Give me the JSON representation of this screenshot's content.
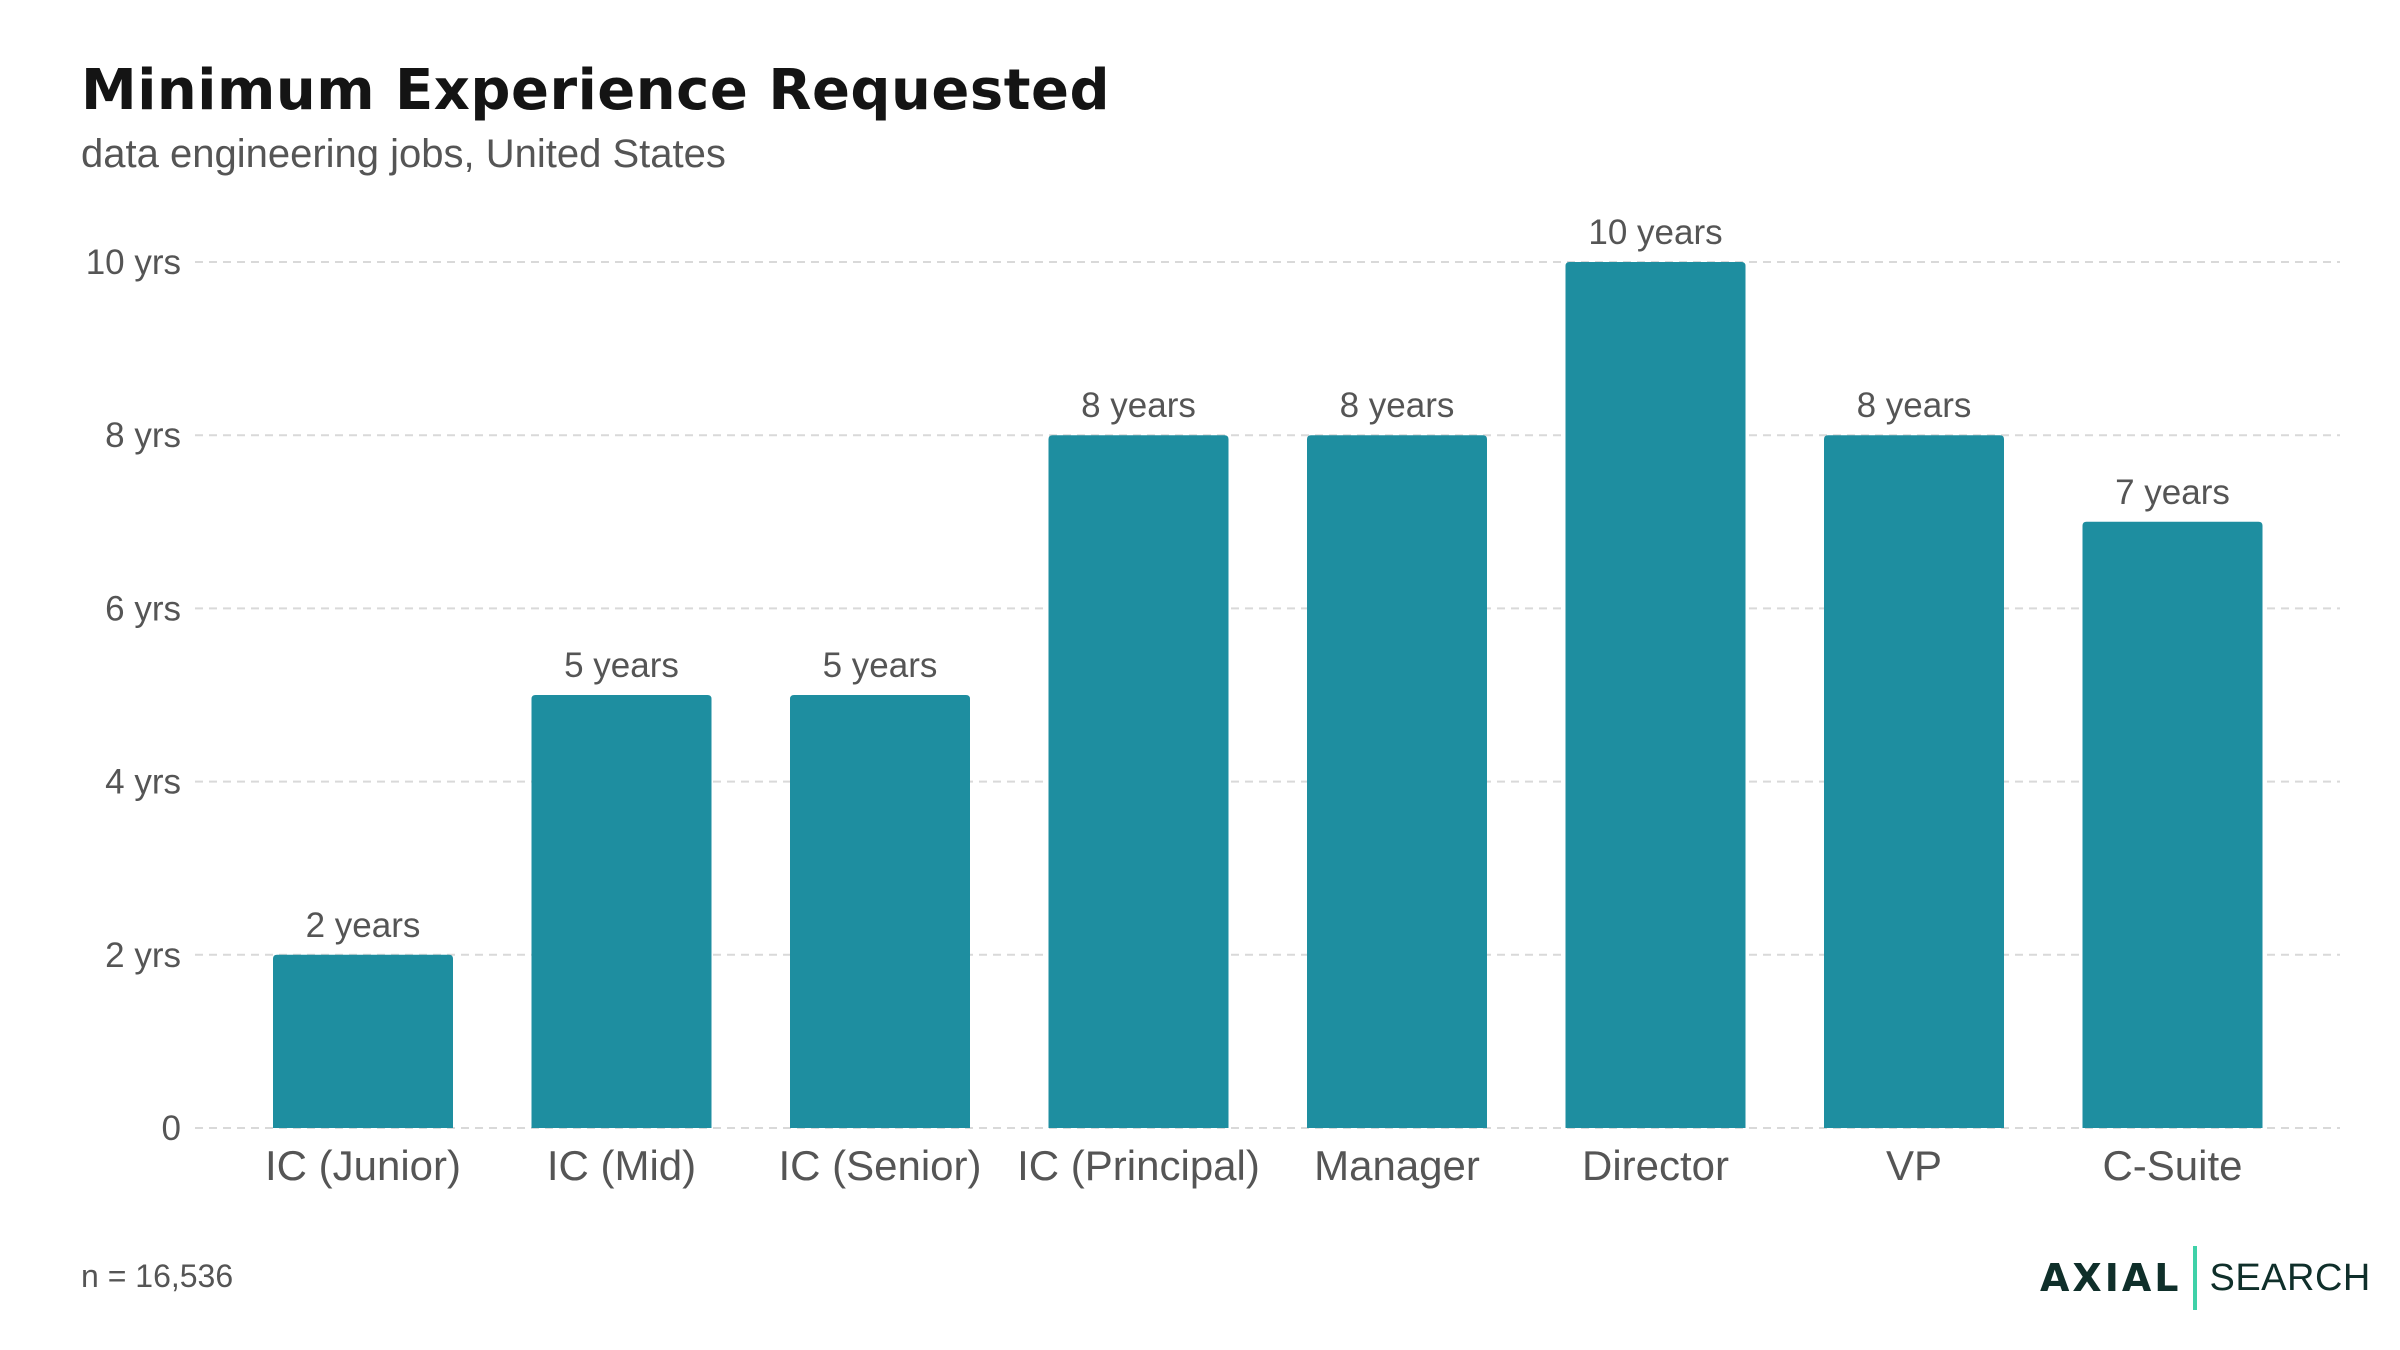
{
  "chart_data": {
    "type": "bar",
    "title": "Minimum Experience Requested",
    "subtitle": "data engineering jobs, United States",
    "categories": [
      "IC (Junior)",
      "IC (Mid)",
      "IC (Senior)",
      "IC (Principal)",
      "Manager",
      "Director",
      "VP",
      "C-Suite"
    ],
    "values": [
      2,
      5,
      5,
      8,
      8,
      10,
      8,
      7
    ],
    "data_labels": [
      "2 years",
      "5 years",
      "5 years",
      "8 years",
      "8 years",
      "10 years",
      "8 years",
      "7 years"
    ],
    "y_ticks": [
      0,
      2,
      4,
      6,
      8,
      10
    ],
    "y_tick_labels": [
      "0",
      "2 yrs",
      "4 yrs",
      "6 yrs",
      "8 yrs",
      "10 yrs"
    ],
    "ylim": [
      0,
      10
    ],
    "grid": true,
    "bar_color": "#1e8ea0"
  },
  "footnote": "n = 16,536",
  "brand": {
    "primary": "AXIAL",
    "secondary": "SEARCH",
    "accent_color": "#3fd1a8"
  }
}
